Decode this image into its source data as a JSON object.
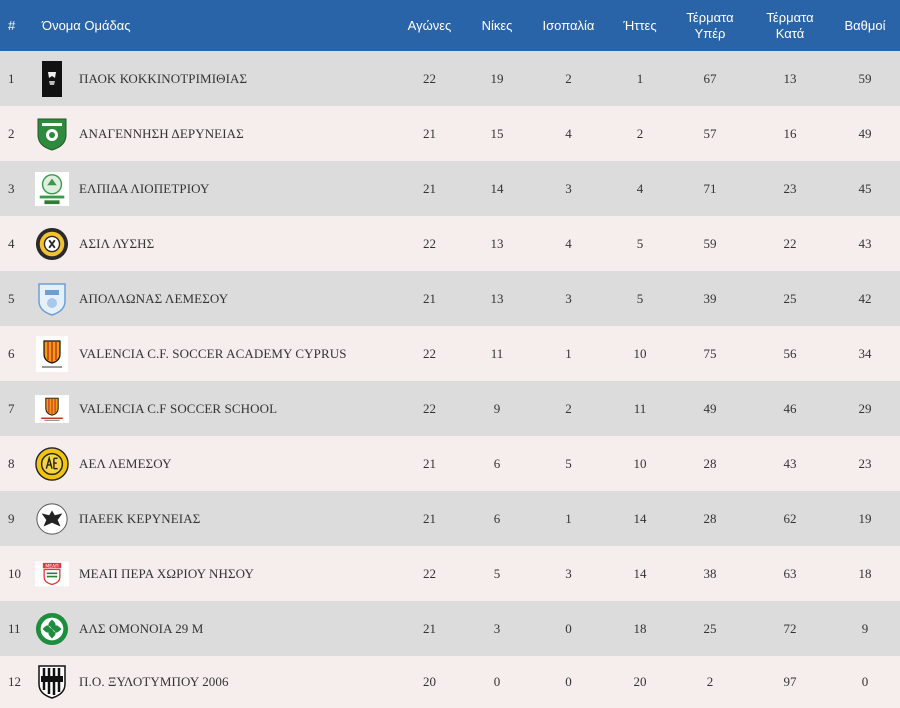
{
  "table": {
    "headers": {
      "pos": "#",
      "team": "Όνομα Ομάδας",
      "played": "Αγώνες",
      "wins": "Νίκες",
      "draws": "Ισοπαλία",
      "losses": "Ήττες",
      "gf_1": "Τέρματα",
      "gf_2": "Υπέρ",
      "ga_1": "Τέρματα",
      "ga_2": "Κατά",
      "points": "Βαθμοί"
    },
    "rows": [
      {
        "pos": "1",
        "team": "ΠΑΟΚ ΚΟΚΚΙΝΟΤΡΙΜΙΘΙΑΣ",
        "played": "22",
        "wins": "19",
        "draws": "2",
        "losses": "1",
        "gf": "67",
        "ga": "13",
        "points": "59",
        "logo": "paok-crest-icon"
      },
      {
        "pos": "2",
        "team": "ΑΝΑΓΕΝΝΗΣΗ ΔΕΡΥΝΕΙΑΣ",
        "played": "21",
        "wins": "15",
        "draws": "4",
        "losses": "2",
        "gf": "57",
        "ga": "16",
        "points": "49",
        "logo": "anagennisi-crest-icon"
      },
      {
        "pos": "3",
        "team": "ΕΛΠΙΔΑ ΛΙΟΠΕΤΡΙΟΥ",
        "played": "21",
        "wins": "14",
        "draws": "3",
        "losses": "4",
        "gf": "71",
        "ga": "23",
        "points": "45",
        "logo": "elpida-crest-icon"
      },
      {
        "pos": "4",
        "team": "ΑΣΙΛ ΛΥΣΗΣ",
        "played": "22",
        "wins": "13",
        "draws": "4",
        "losses": "5",
        "gf": "59",
        "ga": "22",
        "points": "43",
        "logo": "asil-crest-icon"
      },
      {
        "pos": "5",
        "team": "ΑΠΟΛΛΩΝΑΣ ΛΕΜΕΣΟΥ",
        "played": "21",
        "wins": "13",
        "draws": "3",
        "losses": "5",
        "gf": "39",
        "ga": "25",
        "points": "42",
        "logo": "apollon-crest-icon"
      },
      {
        "pos": "6",
        "team": "VALENCIA C.F. SOCCER ACADEMY CYPRUS",
        "played": "22",
        "wins": "11",
        "draws": "1",
        "losses": "10",
        "gf": "75",
        "ga": "56",
        "points": "34",
        "logo": "valencia-academy-crest-icon"
      },
      {
        "pos": "7",
        "team": "VALENCIA C.F SOCCER SCHOOL",
        "played": "22",
        "wins": "9",
        "draws": "2",
        "losses": "11",
        "gf": "49",
        "ga": "46",
        "points": "29",
        "logo": "valencia-school-crest-icon"
      },
      {
        "pos": "8",
        "team": "ΑΕΛ ΛΕΜΕΣΟΥ",
        "played": "21",
        "wins": "6",
        "draws": "5",
        "losses": "10",
        "gf": "28",
        "ga": "43",
        "points": "23",
        "logo": "ael-crest-icon"
      },
      {
        "pos": "9",
        "team": "ΠΑΕΕΚ ΚΕΡΥΝΕΙΑΣ",
        "played": "21",
        "wins": "6",
        "draws": "1",
        "losses": "14",
        "gf": "28",
        "ga": "62",
        "points": "19",
        "logo": "paeek-crest-icon"
      },
      {
        "pos": "10",
        "team": "ΜΕΑΠ ΠΕΡΑ ΧΩΡΙΟΥ ΝΗΣΟΥ",
        "played": "22",
        "wins": "5",
        "draws": "3",
        "losses": "14",
        "gf": "38",
        "ga": "63",
        "points": "18",
        "logo": "meap-crest-icon"
      },
      {
        "pos": "11",
        "team": "ΑΛΣ ΟΜΟΝΟΙΑ 29 Μ",
        "played": "21",
        "wins": "3",
        "draws": "0",
        "losses": "18",
        "gf": "25",
        "ga": "72",
        "points": "9",
        "logo": "omonoia-crest-icon"
      },
      {
        "pos": "12",
        "team": "Π.Ο. ΞΥΛΟΤΥΜΠΟΥ 2006",
        "played": "20",
        "wins": "0",
        "draws": "0",
        "losses": "20",
        "gf": "2",
        "ga": "97",
        "points": "0",
        "logo": "xylotymbou-crest-icon"
      }
    ]
  },
  "colors": {
    "header_bg": "#2a64a8",
    "row_odd": "#dcdcdc",
    "row_even": "#f6eded"
  }
}
